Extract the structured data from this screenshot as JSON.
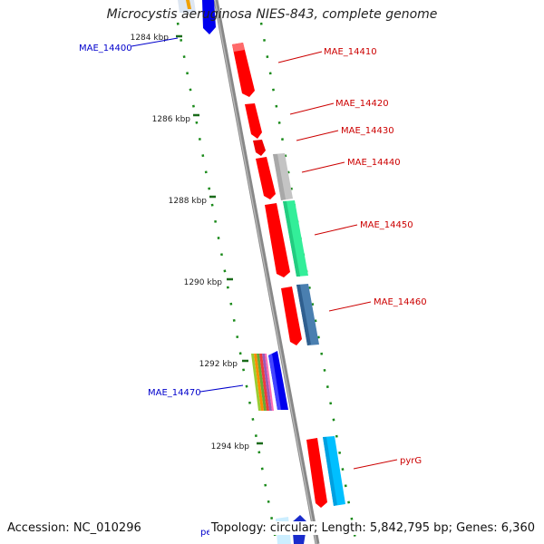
{
  "title": "Microcystis aeruginosa NIES-843, complete genome",
  "footer": {
    "accession": "Accession: NC_010296",
    "topology": "Topology: circular; Length: 5,842,795 bp; Genes: 6,360"
  },
  "ticks": [
    {
      "label": "1284 kbp"
    },
    {
      "label": "1286 kbp"
    },
    {
      "label": "1288 kbp"
    },
    {
      "label": "1290 kbp"
    },
    {
      "label": "1292 kbp"
    },
    {
      "label": "1294 kbp"
    }
  ],
  "gene_labels": [
    {
      "label": "MAE_14400",
      "color": "#0000cc"
    },
    {
      "label": "MAE_14410",
      "color": "#cc0000"
    },
    {
      "label": "MAE_14420",
      "color": "#cc0000"
    },
    {
      "label": "MAE_14430",
      "color": "#cc0000"
    },
    {
      "label": "MAE_14440",
      "color": "#cc0000"
    },
    {
      "label": "MAE_14450",
      "color": "#cc0000"
    },
    {
      "label": "MAE_14460",
      "color": "#cc0000"
    },
    {
      "label": "MAE_14470",
      "color": "#0000cc"
    },
    {
      "label": "pyrG",
      "color": "#cc0000"
    },
    {
      "label": "petF",
      "color": "#0000cc"
    }
  ],
  "colors": {
    "backbone": "#808080",
    "forward_cds": "#ff0000",
    "reverse_cds": "#0000ff",
    "tick_marks": "#1a8a1a"
  }
}
